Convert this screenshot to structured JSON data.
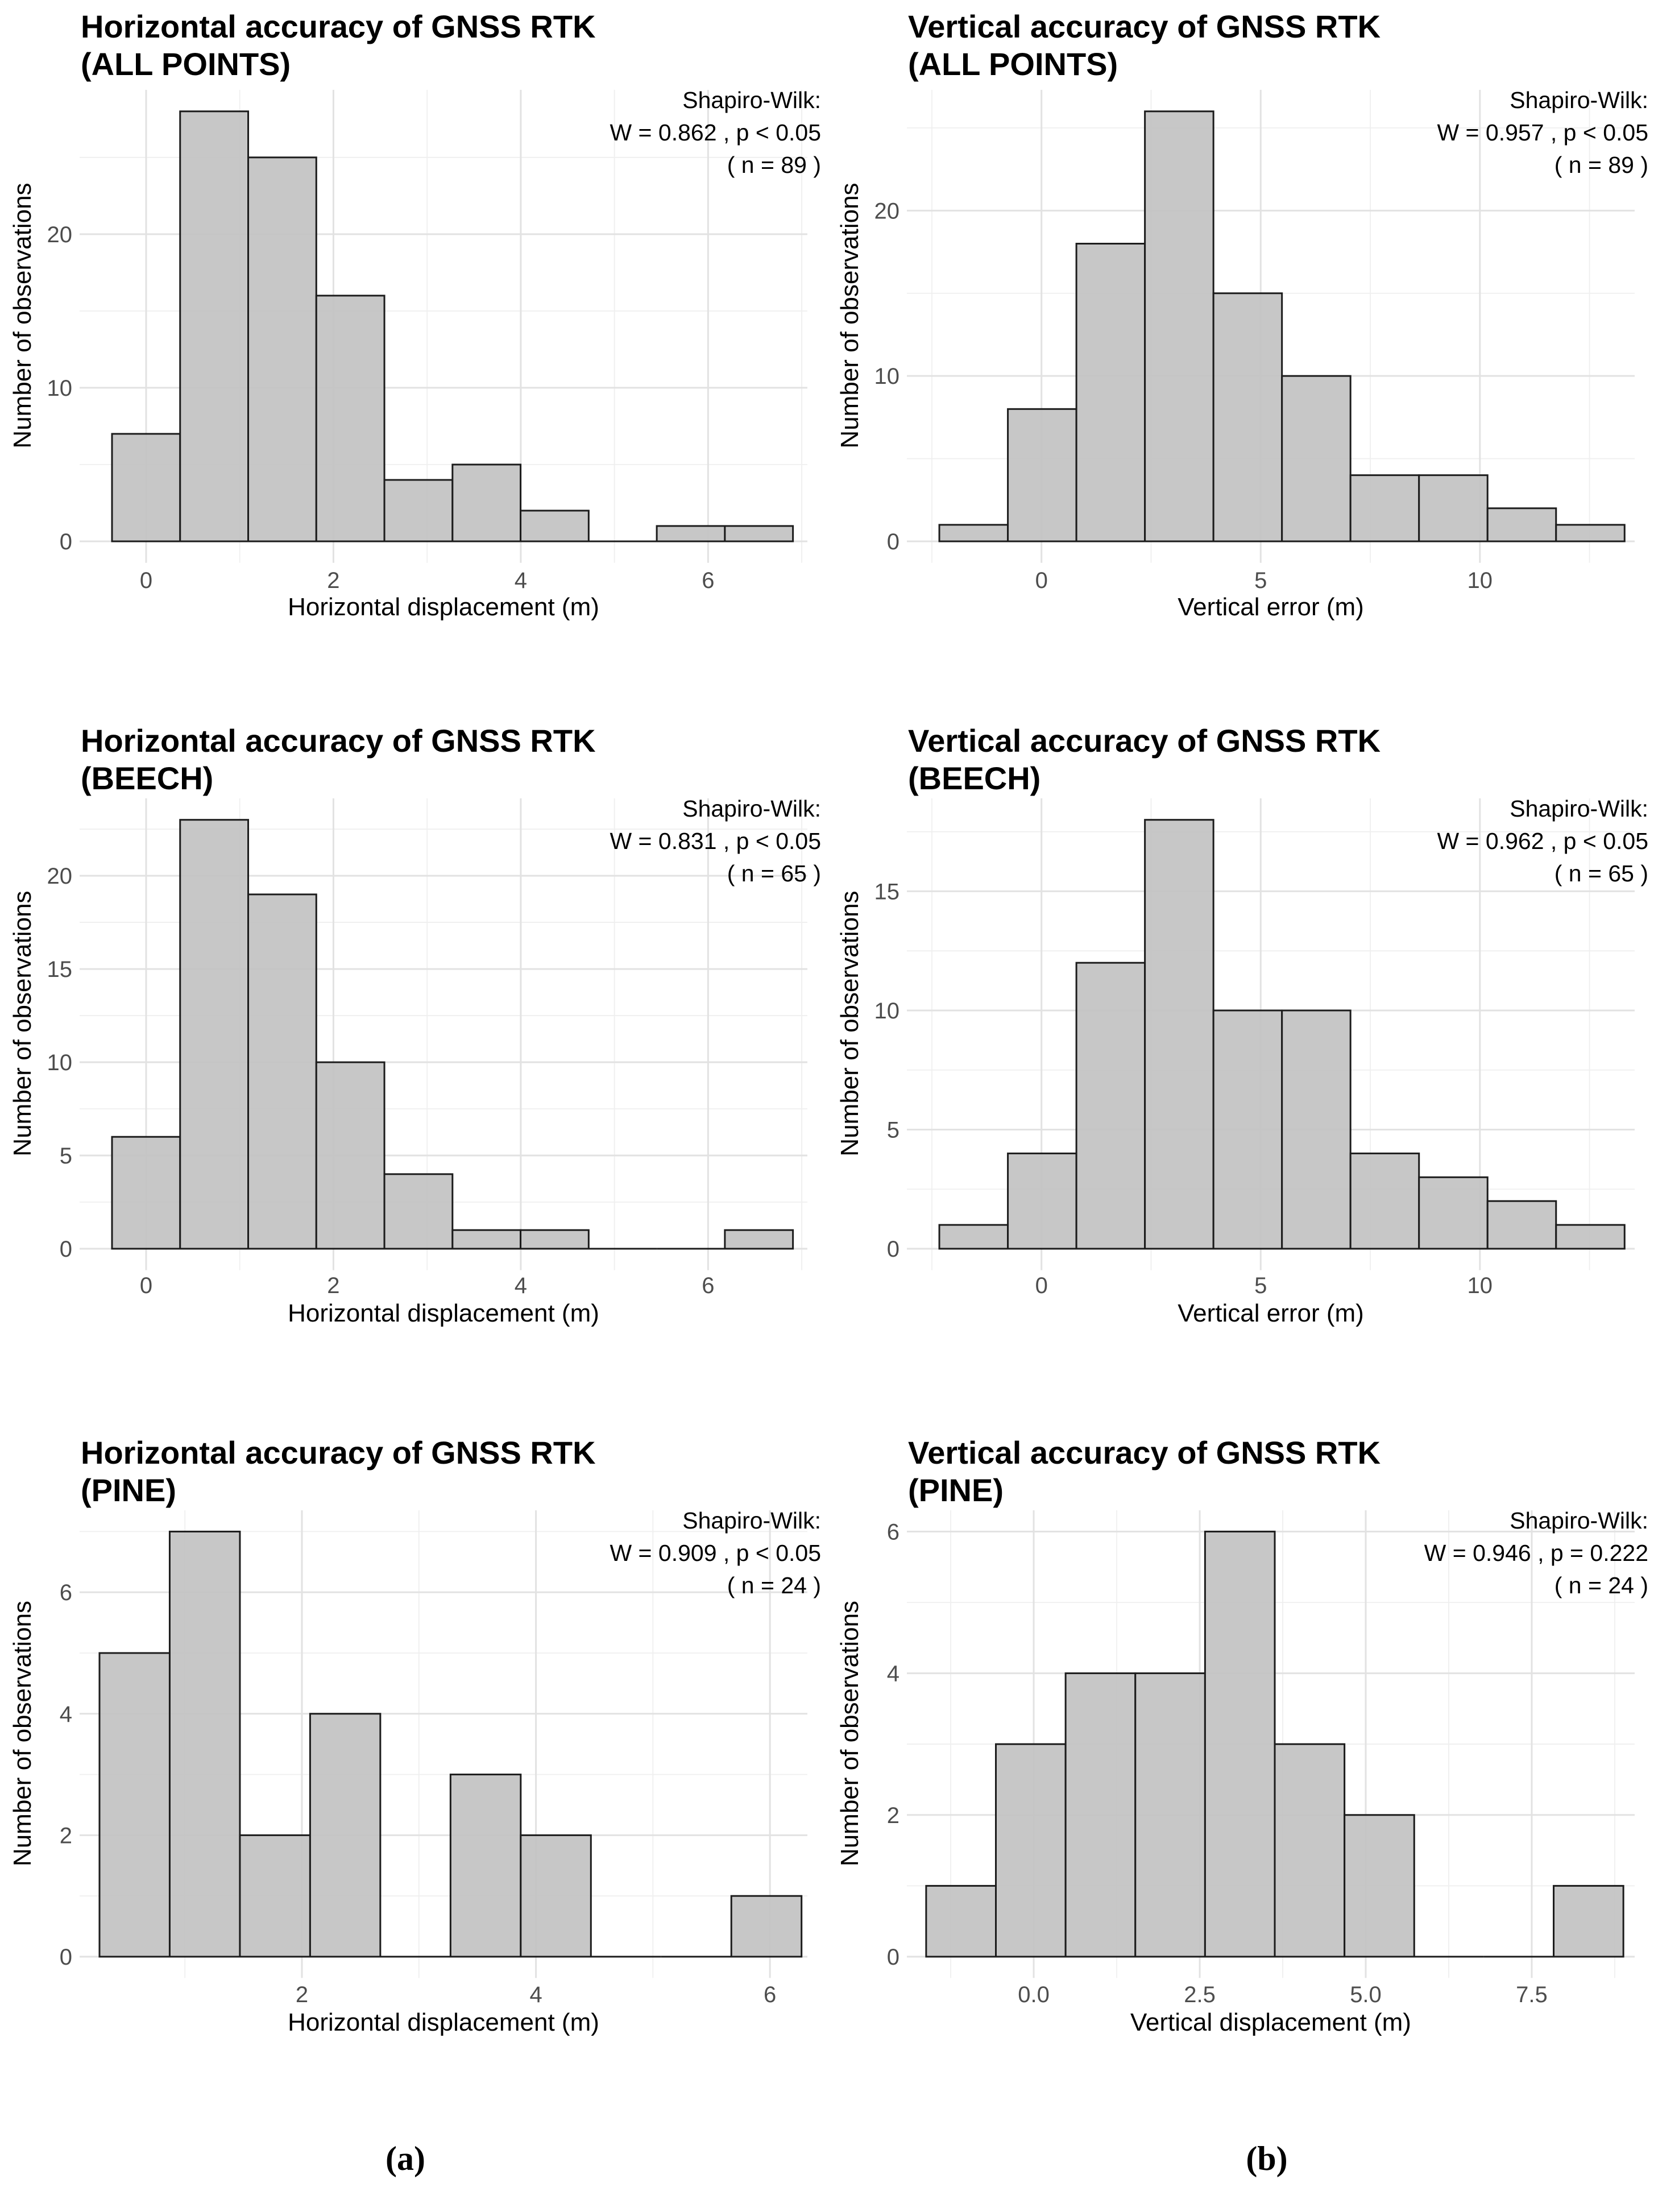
{
  "figure": {
    "background": "#ffffff",
    "bar_fill": "#c2c2c2",
    "bar_stroke": "#1c1c1c",
    "grid_major_color": "#e2e2e2",
    "grid_minor_color": "#efefef",
    "tick_label_color": "#4d4d4d",
    "text_color": "#000000"
  },
  "captions": {
    "left": "(a)",
    "right": "(b)"
  },
  "chart_data": [
    {
      "id": "horizontal-all-points",
      "type": "bar",
      "title": [
        "Horizontal accuracy of GNSS RTK",
        " (ALL POINTS)"
      ],
      "annotation": [
        "Shapiro-Wilk:",
        "W = 0.862 , p < 0.05",
        "( n = 89 )"
      ],
      "xlabel": "Horizontal displacement (m)",
      "ylabel": "Number of observations",
      "n": 89,
      "bin_start": -0.364,
      "bin_width": 0.727,
      "values": [
        7,
        28,
        25,
        16,
        4,
        5,
        2,
        0,
        1,
        1
      ],
      "xlim": [
        -0.71,
        7.06
      ],
      "ymax": 29.4,
      "x_ticks": {
        "values": [
          0,
          2,
          4,
          6
        ],
        "labels": [
          "0",
          "2",
          "4",
          "6"
        ],
        "minor": [
          1,
          3,
          5,
          7
        ]
      },
      "y_ticks": {
        "values": [
          0,
          10,
          20
        ],
        "labels": [
          "0",
          "10",
          "20"
        ],
        "minor": [
          5,
          15,
          25
        ]
      }
    },
    {
      "id": "vertical-all-points",
      "type": "bar",
      "title": [
        "Vertical accuracy of GNSS RTK",
        " (ALL POINTS)"
      ],
      "annotation": [
        "Shapiro-Wilk:",
        "W = 0.957 , p < 0.05",
        "( n = 89 )"
      ],
      "xlabel": "Vertical error (m)",
      "ylabel": "Number of observations",
      "n": 89,
      "bin_start": -2.33,
      "bin_width": 1.563,
      "values": [
        1,
        8,
        18,
        26,
        15,
        10,
        4,
        4,
        2,
        1
      ],
      "xlim": [
        -3.07,
        13.53
      ],
      "ymax": 27.3,
      "x_ticks": {
        "values": [
          0,
          5,
          10
        ],
        "labels": [
          "0",
          "5",
          "10"
        ],
        "minor": [
          -2.5,
          2.5,
          7.5,
          12.5
        ]
      },
      "y_ticks": {
        "values": [
          0,
          10,
          20
        ],
        "labels": [
          "0",
          "10",
          "20"
        ],
        "minor": [
          5,
          15,
          25
        ]
      }
    },
    {
      "id": "horizontal-beech",
      "type": "bar",
      "title": [
        "Horizontal accuracy of GNSS RTK",
        " (BEECH)"
      ],
      "annotation": [
        "Shapiro-Wilk:",
        "W = 0.831 , p < 0.05",
        "( n = 65 )"
      ],
      "xlabel": "Horizontal displacement (m)",
      "ylabel": "Number of observations",
      "n": 65,
      "bin_start": -0.364,
      "bin_width": 0.727,
      "values": [
        6,
        23,
        19,
        10,
        4,
        1,
        1,
        0,
        0,
        1
      ],
      "xlim": [
        -0.71,
        7.06
      ],
      "ymax": 24.15,
      "x_ticks": {
        "values": [
          0,
          2,
          4,
          6
        ],
        "labels": [
          "0",
          "2",
          "4",
          "6"
        ],
        "minor": [
          1,
          3,
          5,
          7
        ]
      },
      "y_ticks": {
        "values": [
          0,
          5,
          10,
          15,
          20
        ],
        "labels": [
          "0",
          "5",
          "10",
          "15",
          "20"
        ],
        "minor": [
          2.5,
          7.5,
          12.5,
          17.5,
          22.5
        ]
      }
    },
    {
      "id": "vertical-beech",
      "type": "bar",
      "title": [
        "Vertical accuracy of GNSS RTK",
        " (BEECH)"
      ],
      "annotation": [
        "Shapiro-Wilk:",
        "W = 0.962 , p < 0.05",
        "( n = 65 )"
      ],
      "xlabel": "Vertical error (m)",
      "ylabel": "Number of observations",
      "n": 65,
      "bin_start": -2.33,
      "bin_width": 1.563,
      "values": [
        1,
        4,
        12,
        18,
        10,
        10,
        4,
        3,
        2,
        1
      ],
      "xlim": [
        -3.07,
        13.53
      ],
      "ymax": 18.9,
      "x_ticks": {
        "values": [
          0,
          5,
          10
        ],
        "labels": [
          "0",
          "5",
          "10"
        ],
        "minor": [
          -2.5,
          2.5,
          7.5,
          12.5
        ]
      },
      "y_ticks": {
        "values": [
          0,
          5,
          10,
          15
        ],
        "labels": [
          "0",
          "5",
          "10",
          "15"
        ],
        "minor": [
          2.5,
          7.5,
          12.5,
          17.5
        ]
      }
    },
    {
      "id": "horizontal-pine",
      "type": "bar",
      "title": [
        "Horizontal accuracy of GNSS RTK",
        " (PINE)"
      ],
      "annotation": [
        "Shapiro-Wilk:",
        "W = 0.909 , p < 0.05",
        "( n = 24 )"
      ],
      "xlabel": "Horizontal displacement (m)",
      "ylabel": "Number of observations",
      "n": 24,
      "bin_start": 0.27,
      "bin_width": 0.6,
      "values": [
        5,
        7,
        2,
        4,
        0,
        3,
        2,
        0,
        0,
        1
      ],
      "xlim": [
        0.1,
        6.32
      ],
      "ymax": 7.35,
      "x_ticks": {
        "values": [
          2,
          4,
          6
        ],
        "labels": [
          "2",
          "4",
          "6"
        ],
        "minor": [
          1,
          3,
          5
        ]
      },
      "y_ticks": {
        "values": [
          0,
          2,
          4,
          6
        ],
        "labels": [
          "0",
          "2",
          "4",
          "6"
        ],
        "minor": [
          1,
          3,
          5,
          7
        ]
      }
    },
    {
      "id": "vertical-pine",
      "type": "bar",
      "title": [
        "Vertical accuracy of GNSS RTK",
        " (PINE)"
      ],
      "annotation": [
        "Shapiro-Wilk:",
        "W = 0.946 , p = 0.222",
        "( n = 24 )"
      ],
      "xlabel": "Vertical displacement (m)",
      "ylabel": "Number of observations",
      "n": 24,
      "bin_start": -1.62,
      "bin_width": 1.05,
      "values": [
        1,
        3,
        4,
        4,
        6,
        3,
        2,
        0,
        0,
        1
      ],
      "xlim": [
        -1.91,
        9.05
      ],
      "ymax": 6.3,
      "x_ticks": {
        "values": [
          0,
          2.5,
          5,
          7.5
        ],
        "labels": [
          "0.0",
          "2.5",
          "5.0",
          "7.5"
        ],
        "minor": [
          -1.25,
          1.25,
          3.75,
          6.25,
          8.75
        ]
      },
      "y_ticks": {
        "values": [
          0,
          2,
          4,
          6
        ],
        "labels": [
          "0",
          "2",
          "4",
          "6"
        ],
        "minor": [
          1,
          3,
          5
        ]
      }
    }
  ]
}
